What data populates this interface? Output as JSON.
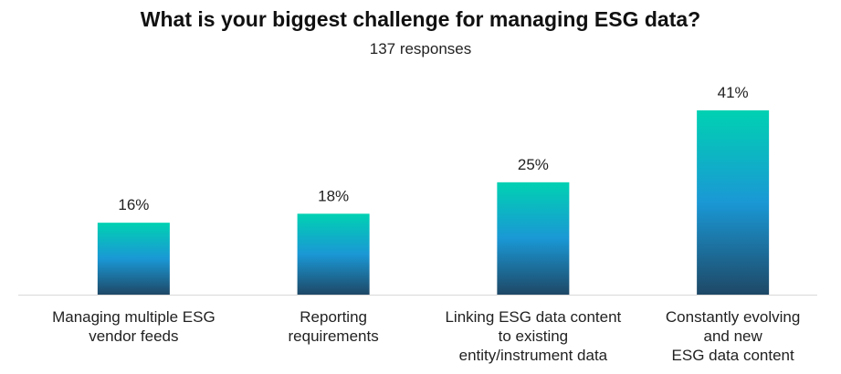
{
  "chart_data": {
    "type": "bar",
    "title": "What is your biggest challenge for managing ESG data?",
    "subtitle": "137 responses",
    "categories": [
      [
        "Managing multiple ESG",
        "vendor feeds"
      ],
      [
        "Reporting",
        "requirements"
      ],
      [
        "Linking ESG data content",
        "to existing",
        "entity/instrument data"
      ],
      [
        "Constantly evolving",
        "and new",
        "ESG data content"
      ]
    ],
    "values": [
      16,
      18,
      25,
      41
    ],
    "value_labels": [
      "16%",
      "18%",
      "25%",
      "41%"
    ],
    "ylim": [
      0,
      41
    ],
    "grid": false,
    "colors": {
      "bar_top": "#00d1b2",
      "bar_mid": "#1a98d5",
      "bar_bottom": "#1e4866",
      "axis": "#d9d9d9"
    }
  }
}
